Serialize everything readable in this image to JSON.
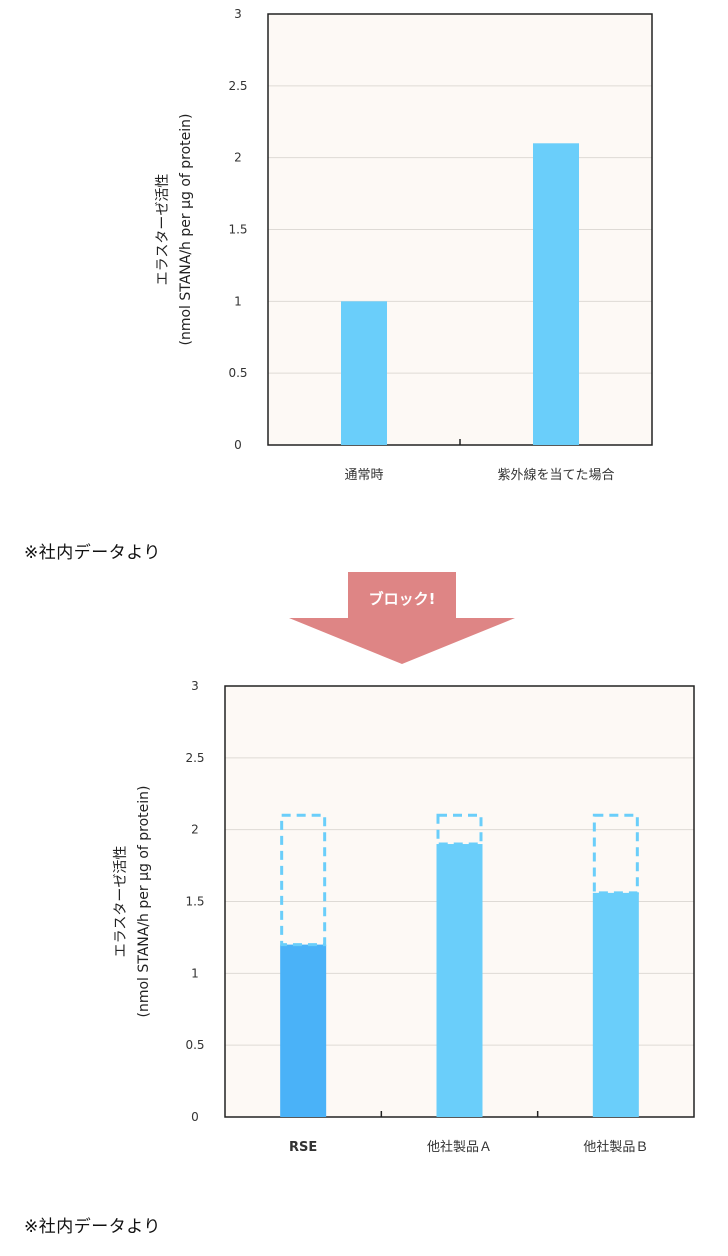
{
  "chart_data": [
    {
      "type": "bar",
      "categories": [
        "通常時",
        "紫外線を当てた場合"
      ],
      "values": [
        1.0,
        2.1
      ],
      "ylabel_line1": "エラスターゼ活性",
      "ylabel_line2": "(nmol STANA/h per μg of protein)",
      "ylim": [
        0,
        3
      ],
      "yticks": [
        "0",
        "0.5",
        "1",
        "1.5",
        "2",
        "2.5",
        "3"
      ],
      "grid": true,
      "bar_color": "#6acefa",
      "background_color": "#fdf9f5"
    },
    {
      "type": "bar",
      "categories": [
        "RSE",
        "他社製品Ａ",
        "他社製品Ｂ"
      ],
      "values": [
        1.2,
        1.9,
        1.56
      ],
      "reference_value": 2.1,
      "ylabel_line1": "エラスターゼ活性",
      "ylabel_line2": "(nmol STANA/h per μg of protein)",
      "ylim": [
        0,
        3
      ],
      "yticks": [
        "0",
        "0.5",
        "1",
        "1.5",
        "2",
        "2.5",
        "3"
      ],
      "grid": true,
      "bar_colors": [
        "#4ab2f8",
        "#6acefa",
        "#6acefa"
      ],
      "dashed_outline_color": "#6acefa",
      "background_color": "#fdf9f5"
    }
  ],
  "notes": [
    "※社内データより",
    "※社内データより"
  ],
  "arrow": {
    "label": "ブロック!",
    "color": "#de8585"
  }
}
